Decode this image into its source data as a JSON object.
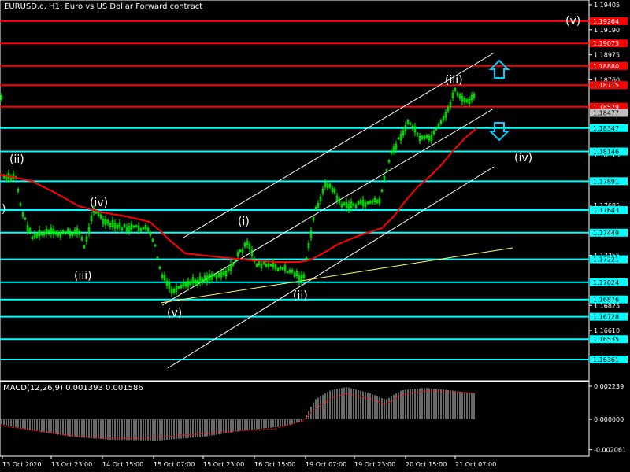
{
  "header": {
    "title": "EURUSD.c, H1:  Euro vs US Dollar Forward contract"
  },
  "macd": {
    "label": "MACD(12,26,9) 0.001393 0.001586",
    "ticks": [
      {
        "v": 0.002239,
        "label": "0.002239"
      },
      {
        "v": 0.0,
        "label": "0.000000"
      },
      {
        "v": -0.002061,
        "label": "-0.002061"
      }
    ]
  },
  "colors": {
    "background": "#000000",
    "candle": "#00ff00",
    "ma": "#ff0000",
    "hline_red": "#ff0000",
    "hline_cyan": "#00ffff",
    "channel": "#ffffff",
    "trendline": "#ffff66",
    "arrows": "#00cfff",
    "grid_text": "#ffffff"
  },
  "price_axis": {
    "plain_labels": [
      "1.19405",
      "1.19190",
      "1.18975",
      "1.18760",
      "1.18347",
      "1.18115",
      "1.17685",
      "1.17255",
      "1.16825",
      "1.16610"
    ],
    "red_levels": [
      "1.19264",
      "1.19073",
      "1.18880",
      "1.18715",
      "1.18529"
    ],
    "cyan_levels": [
      "1.18347",
      "1.18146",
      "1.17891",
      "1.17643",
      "1.17449",
      "1.17221",
      "1.17024",
      "1.16876",
      "1.16728",
      "1.16535",
      "1.16361"
    ],
    "current_price": "1.18477"
  },
  "time_axis": [
    "13 Oct 2020",
    "13 Oct 23:00",
    "14 Oct 15:00",
    "15 Oct 07:00",
    "15 Oct 23:00",
    "16 Oct 15:00",
    "19 Oct 07:00",
    "19 Oct 23:00",
    "20 Oct 15:00",
    "21 Oct 07:00"
  ],
  "wave_labels": [
    {
      "text": "(ii)",
      "name": "wave-label-ii-left"
    },
    {
      "text": ")",
      "name": "wave-label-edge"
    },
    {
      "text": "(iv)",
      "name": "wave-label-iv-left"
    },
    {
      "text": "(iii)",
      "name": "wave-label-iii-left"
    },
    {
      "text": "(v)",
      "name": "wave-label-v-low"
    },
    {
      "text": "(i)",
      "name": "wave-label-i"
    },
    {
      "text": "(ii)",
      "name": "wave-label-ii"
    },
    {
      "text": "(iii)",
      "name": "wave-label-iii"
    },
    {
      "text": "(iv)",
      "name": "wave-label-iv"
    },
    {
      "text": "(v)",
      "name": "wave-label-v-target"
    }
  ],
  "arrows": [
    {
      "direction": "up",
      "icon": "arrow-up-icon"
    },
    {
      "direction": "down",
      "icon": "arrow-down-icon"
    }
  ]
}
